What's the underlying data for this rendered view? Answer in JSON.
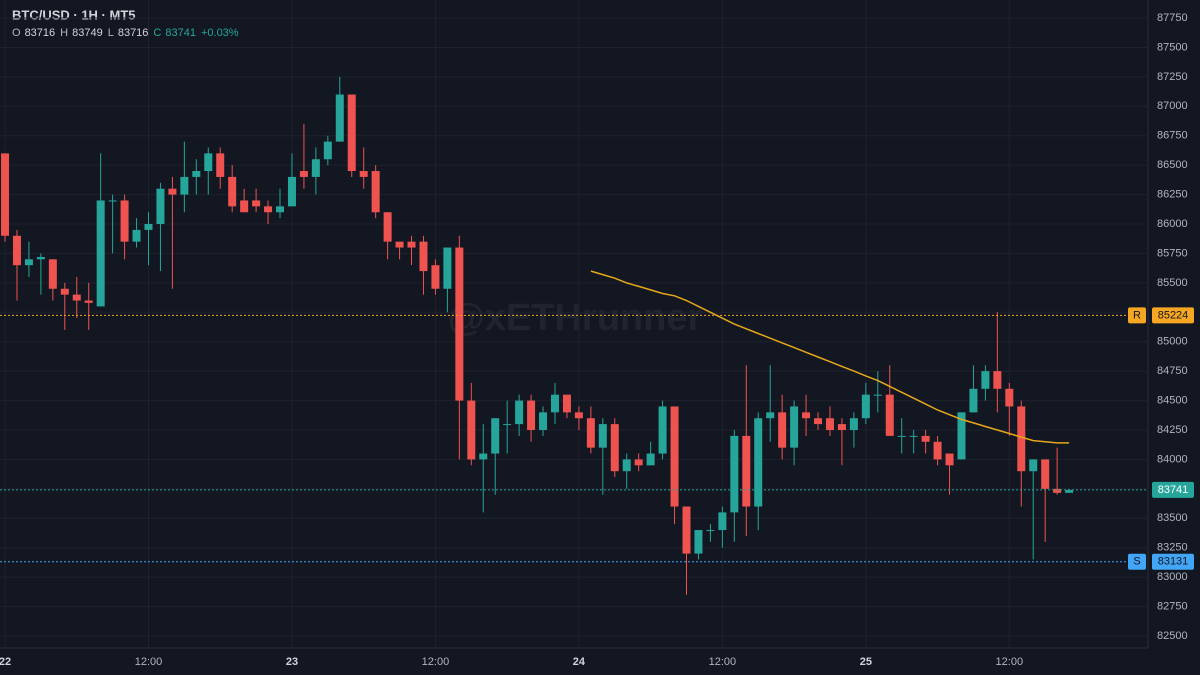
{
  "chart_data": {
    "type": "candlestick",
    "title": "BTC/USD · 1H · MT5",
    "ohlc": [
      {
        "label": "O",
        "value": 83716
      },
      {
        "label": "H",
        "value": 83749
      },
      {
        "label": "L",
        "value": 83716
      },
      {
        "label": "C",
        "value": 83741
      }
    ],
    "change": "+0.03%",
    "watermark": "@xETHrunner",
    "up_color": "#26a69a",
    "down_color": "#ef5350",
    "grid": true,
    "x": [
      0,
      1,
      2,
      3,
      4,
      5,
      6,
      7,
      8,
      9,
      10,
      11,
      12,
      13,
      14,
      15,
      16,
      17,
      18,
      19,
      20,
      21,
      22,
      23,
      24,
      25,
      26,
      27,
      28,
      29,
      30,
      31,
      32,
      33,
      34,
      35,
      36,
      37,
      38,
      39,
      40,
      41,
      42,
      43,
      44,
      45,
      46,
      47,
      48,
      49,
      50,
      51,
      52,
      53,
      54,
      55,
      56,
      57,
      58,
      59,
      60,
      61,
      62,
      63,
      64,
      65,
      66,
      67,
      68,
      69,
      70,
      71,
      72,
      73,
      74,
      75,
      76,
      77,
      78,
      79,
      80,
      81,
      82,
      83,
      84,
      85,
      86,
      87,
      88,
      89
    ],
    "open": [
      86600,
      85900,
      85650,
      85700,
      85700,
      85450,
      85400,
      85350,
      85300,
      86200,
      86200,
      85850,
      85950,
      86000,
      86300,
      86250,
      86400,
      86450,
      86600,
      86400,
      86200,
      86200,
      86150,
      86100,
      86150,
      86450,
      86400,
      86550,
      86700,
      87100,
      86450,
      86450,
      86100,
      85850,
      85850,
      85850,
      85650,
      85450,
      85800,
      84500,
      84000,
      84050,
      84300,
      84300,
      84500,
      84250,
      84400,
      84550,
      84400,
      84350,
      84100,
      84300,
      83900,
      84000,
      83950,
      84050,
      84450,
      83600,
      83200,
      83400,
      83400,
      83550,
      84200,
      83600,
      84350,
      84400,
      84100,
      84400,
      84350,
      84350,
      84300,
      84250,
      84350,
      84550,
      84550,
      84200,
      84200,
      84200,
      84150,
      84050,
      84000,
      84400,
      84600,
      84750,
      84600,
      84450,
      83900,
      84000,
      83750,
      83716
    ],
    "high": [
      86600,
      85950,
      85850,
      85750,
      85700,
      85500,
      85550,
      85500,
      86600,
      86250,
      86250,
      86050,
      86100,
      86350,
      86400,
      86700,
      86550,
      86650,
      86650,
      86500,
      86300,
      86300,
      86200,
      86300,
      86600,
      86850,
      86650,
      86750,
      87250,
      87100,
      86650,
      86500,
      86100,
      85850,
      85900,
      85900,
      85700,
      85800,
      85900,
      84650,
      84300,
      84350,
      84500,
      84550,
      84550,
      84450,
      84650,
      84550,
      84450,
      84450,
      84350,
      84350,
      84050,
      84050,
      84150,
      84500,
      84450,
      83600,
      83400,
      83450,
      83600,
      84250,
      84800,
      84400,
      84800,
      84550,
      84500,
      84550,
      84400,
      84450,
      84350,
      84400,
      84650,
      84750,
      84800,
      84350,
      84250,
      84250,
      84200,
      84050,
      84400,
      84800,
      84800,
      85250,
      84650,
      84500,
      84000,
      84000,
      84100,
      83749
    ],
    "low": [
      85850,
      85350,
      85550,
      85400,
      85350,
      85100,
      85200,
      85100,
      85300,
      85750,
      85700,
      85800,
      85650,
      85600,
      85450,
      86100,
      86250,
      86250,
      86300,
      86100,
      86100,
      86100,
      86000,
      86050,
      86150,
      86300,
      86250,
      86500,
      86700,
      86400,
      86300,
      86050,
      85700,
      85700,
      85650,
      85400,
      85400,
      85250,
      84000,
      83950,
      83550,
      83700,
      84050,
      84200,
      84150,
      84200,
      84300,
      84350,
      84250,
      84050,
      83700,
      83850,
      83750,
      83900,
      83950,
      84000,
      83450,
      82850,
      83150,
      83300,
      83250,
      83300,
      83350,
      83400,
      84150,
      84000,
      83950,
      84200,
      84250,
      84200,
      83950,
      84100,
      84300,
      84400,
      84200,
      84050,
      84050,
      84050,
      83950,
      83700,
      84000,
      84400,
      84500,
      84400,
      84200,
      83600,
      83150,
      83300,
      83700,
      83716
    ],
    "close": [
      85900,
      85650,
      85700,
      85720,
      85450,
      85400,
      85350,
      85330,
      86200,
      86200,
      85850,
      85950,
      86000,
      86300,
      86250,
      86400,
      86450,
      86600,
      86400,
      86150,
      86100,
      86150,
      86100,
      86150,
      86400,
      86400,
      86550,
      86700,
      87100,
      86450,
      86400,
      86100,
      85850,
      85800,
      85800,
      85600,
      85450,
      85800,
      84500,
      84000,
      84050,
      84350,
      84300,
      84500,
      84250,
      84400,
      84550,
      84400,
      84350,
      84100,
      84300,
      83900,
      84000,
      83950,
      84050,
      84450,
      83600,
      83200,
      83400,
      83400,
      83550,
      84200,
      83600,
      84350,
      84400,
      84100,
      84450,
      84350,
      84300,
      84250,
      84250,
      84350,
      84550,
      84550,
      84200,
      84200,
      84200,
      84150,
      84000,
      83950,
      84400,
      84600,
      84750,
      84600,
      84450,
      83900,
      84000,
      83750,
      83716,
      83741
    ],
    "ma": {
      "color": "#e5a81a",
      "values": [
        null,
        null,
        null,
        null,
        null,
        null,
        null,
        null,
        null,
        null,
        null,
        null,
        null,
        null,
        null,
        null,
        null,
        null,
        null,
        null,
        null,
        null,
        null,
        null,
        null,
        null,
        null,
        null,
        null,
        null,
        null,
        null,
        null,
        null,
        null,
        null,
        null,
        null,
        null,
        null,
        null,
        null,
        null,
        null,
        null,
        null,
        null,
        null,
        null,
        85600,
        85570,
        85540,
        85500,
        85470,
        85440,
        85410,
        85390,
        85350,
        85300,
        85250,
        85200,
        85150,
        85110,
        85070,
        85030,
        84990,
        84950,
        84910,
        84870,
        84830,
        84790,
        84750,
        84710,
        84670,
        84620,
        84570,
        84520,
        84470,
        84420,
        84380,
        84340,
        84310,
        84280,
        84250,
        84220,
        84190,
        84160,
        84150,
        84140,
        84140
      ]
    },
    "price_lines": [
      {
        "label": "R",
        "value": 85224,
        "color": "#f5a623"
      },
      {
        "value": 83741,
        "color": "#26a69a"
      },
      {
        "label": "S",
        "value": 83131,
        "color": "#42a5f5"
      }
    ],
    "xlim": [
      -0.42,
      95.6
    ],
    "xticks": [
      {
        "value": 0,
        "label": "22"
      },
      {
        "value": 12,
        "label": "12:00"
      },
      {
        "value": 24,
        "label": "23"
      },
      {
        "value": 36,
        "label": "12:00"
      },
      {
        "value": 48,
        "label": "24"
      },
      {
        "value": 60,
        "label": "12:00"
      },
      {
        "value": 72,
        "label": "25"
      },
      {
        "value": 84,
        "label": "12:00"
      }
    ],
    "ylim": [
      82398,
      87903
    ],
    "yticks": [
      82500,
      82750,
      83000,
      83250,
      83500,
      83750,
      84000,
      84250,
      84500,
      84750,
      85000,
      85250,
      85500,
      85750,
      86000,
      86250,
      86500,
      86750,
      87000,
      87250,
      87500,
      87750
    ]
  }
}
